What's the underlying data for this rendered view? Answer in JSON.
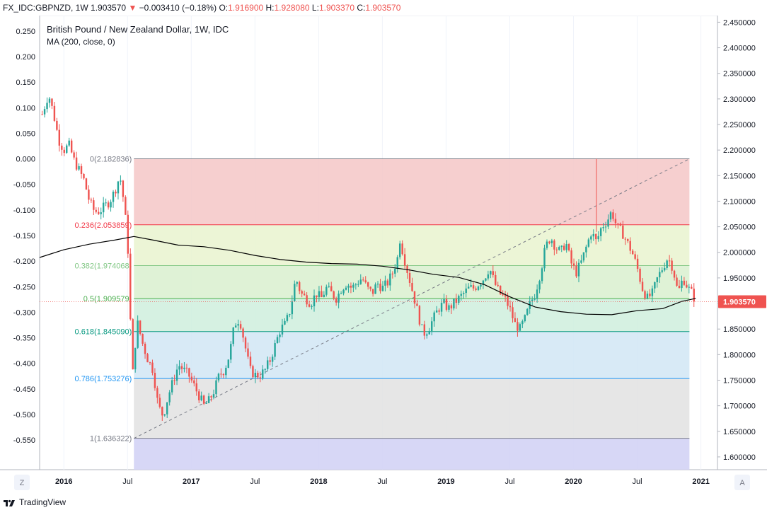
{
  "header": {
    "symbol": "FX_IDC:GBPNZD, 1W",
    "last": "1.903570",
    "arrow": "▼",
    "change": "−0.003410 (−0.18%)",
    "o_label": "O:",
    "o_value": "1.916900",
    "h_label": "H:",
    "h_value": "1.928080",
    "l_label": "L:",
    "l_value": "1.903370",
    "c_label": "C:",
    "c_value": "1.903570"
  },
  "legend": {
    "title": "British Pound / New Zealand Dollar, 1W, IDC",
    "indicator": "MA (200, close, 0)"
  },
  "price_badge": "1.903570",
  "footer": {
    "brand": "TradingView",
    "left_button": "Z",
    "right_button": "A"
  },
  "colors": {
    "up": "#26a69a",
    "down": "#ef5350",
    "ma": "#000000",
    "fib_0": "#787b86",
    "fib_236": "#f23645",
    "fib_382": "#81c784",
    "fib_5": "#4caf50",
    "fib_618": "#089981",
    "fib_786": "#2196f3",
    "fib_1": "#787b86",
    "zone_1": "#f4c7c7",
    "zone_2": "#e9f3cf",
    "zone_3": "#d9f0cf",
    "zone_4": "#cfeedd",
    "zone_5": "#d1e6f5",
    "zone_6": "#e2e2e2",
    "zone_7": "#d3d3f5",
    "badge": "#ef5350"
  },
  "chart_data": {
    "type": "candlestick",
    "title": "British Pound / New Zealand Dollar, 1W, IDC",
    "x_ticks": [
      "2016",
      "Jul",
      "2017",
      "Jul",
      "2018",
      "Jul",
      "2019",
      "Jul",
      "2020",
      "Jul",
      "2021"
    ],
    "x_tick_times": [
      2016.0,
      2016.5,
      2017.0,
      2017.5,
      2018.0,
      2018.5,
      2019.0,
      2019.5,
      2020.0,
      2020.5,
      2021.0
    ],
    "xlim": [
      2015.81,
      2021.13
    ],
    "y_right_ticks": [
      "2.450000",
      "2.400000",
      "2.350000",
      "2.300000",
      "2.250000",
      "2.200000",
      "2.150000",
      "2.100000",
      "2.050000",
      "2.000000",
      "1.950000",
      "1.900000",
      "1.850000",
      "1.800000",
      "1.750000",
      "1.700000",
      "1.650000",
      "1.600000"
    ],
    "y_right_values": [
      2.45,
      2.4,
      2.35,
      2.3,
      2.25,
      2.2,
      2.15,
      2.1,
      2.05,
      2.0,
      1.95,
      1.9,
      1.85,
      1.8,
      1.75,
      1.7,
      1.65,
      1.6
    ],
    "y_left_ticks": [
      "0.250",
      "0.200",
      "0.150",
      "0.100",
      "0.050",
      "0.000",
      "-0.050",
      "-0.100",
      "-0.150",
      "-0.200",
      "-0.250",
      "-0.300",
      "-0.350",
      "-0.400",
      "-0.450",
      "-0.500",
      "-0.550"
    ],
    "y_left_values": [
      0.25,
      0.2,
      0.15,
      0.1,
      0.05,
      0.0,
      -0.05,
      -0.1,
      -0.15,
      -0.2,
      -0.25,
      -0.3,
      -0.35,
      -0.4,
      -0.45,
      -0.5,
      -0.55
    ],
    "ylim": [
      1.575,
      2.463
    ],
    "last_price": 1.90357,
    "fib_levels": [
      {
        "label": "0(2.182836)",
        "ratio": 0,
        "price": 2.182836,
        "color": "#787b86"
      },
      {
        "label": "0.236(2.053859)",
        "ratio": 0.236,
        "price": 2.053859,
        "color": "#f23645"
      },
      {
        "label": "0.382(1.974068)",
        "ratio": 0.382,
        "price": 1.974068,
        "color": "#81c784"
      },
      {
        "label": "0.5(1.909579)",
        "ratio": 0.5,
        "price": 1.909579,
        "color": "#4caf50"
      },
      {
        "label": "0.618(1.845090)",
        "ratio": 0.618,
        "price": 1.84509,
        "color": "#089981"
      },
      {
        "label": "0.786(1.753276)",
        "ratio": 0.786,
        "price": 1.753276,
        "color": "#2196f3"
      },
      {
        "label": "1(1.636322)",
        "ratio": 1,
        "price": 1.636322,
        "color": "#787b86"
      }
    ],
    "fib_start_time": 2016.55,
    "fib_end_time": 2020.91,
    "price_path": [
      [
        2015.83,
        2.27
      ],
      [
        2015.88,
        2.31
      ],
      [
        2015.92,
        2.27
      ],
      [
        2015.96,
        2.22
      ],
      [
        2016.0,
        2.2
      ],
      [
        2016.04,
        2.21
      ],
      [
        2016.08,
        2.18
      ],
      [
        2016.12,
        2.16
      ],
      [
        2016.16,
        2.14
      ],
      [
        2016.2,
        2.1
      ],
      [
        2016.24,
        2.08
      ],
      [
        2016.28,
        2.08
      ],
      [
        2016.32,
        2.09
      ],
      [
        2016.36,
        2.1
      ],
      [
        2016.4,
        2.12
      ],
      [
        2016.44,
        2.15
      ],
      [
        2016.47,
        2.1
      ],
      [
        2016.49,
        2.05
      ],
      [
        2016.51,
        1.98
      ],
      [
        2016.52,
        1.88
      ],
      [
        2016.54,
        1.76
      ],
      [
        2016.56,
        1.82
      ],
      [
        2016.58,
        1.86
      ],
      [
        2016.62,
        1.82
      ],
      [
        2016.66,
        1.79
      ],
      [
        2016.7,
        1.77
      ],
      [
        2016.74,
        1.7
      ],
      [
        2016.78,
        1.68
      ],
      [
        2016.82,
        1.72
      ],
      [
        2016.86,
        1.75
      ],
      [
        2016.9,
        1.78
      ],
      [
        2016.94,
        1.77
      ],
      [
        2016.98,
        1.76
      ],
      [
        2017.02,
        1.74
      ],
      [
        2017.06,
        1.72
      ],
      [
        2017.1,
        1.7
      ],
      [
        2017.14,
        1.71
      ],
      [
        2017.18,
        1.73
      ],
      [
        2017.22,
        1.76
      ],
      [
        2017.26,
        1.77
      ],
      [
        2017.3,
        1.8
      ],
      [
        2017.34,
        1.86
      ],
      [
        2017.38,
        1.87
      ],
      [
        2017.42,
        1.82
      ],
      [
        2017.46,
        1.77
      ],
      [
        2017.5,
        1.76
      ],
      [
        2017.54,
        1.76
      ],
      [
        2017.58,
        1.77
      ],
      [
        2017.62,
        1.79
      ],
      [
        2017.66,
        1.82
      ],
      [
        2017.7,
        1.85
      ],
      [
        2017.74,
        1.86
      ],
      [
        2017.78,
        1.89
      ],
      [
        2017.82,
        1.95
      ],
      [
        2017.86,
        1.92
      ],
      [
        2017.9,
        1.91
      ],
      [
        2017.94,
        1.9
      ],
      [
        2017.98,
        1.92
      ],
      [
        2018.02,
        1.91
      ],
      [
        2018.06,
        1.93
      ],
      [
        2018.1,
        1.92
      ],
      [
        2018.14,
        1.91
      ],
      [
        2018.18,
        1.93
      ],
      [
        2018.22,
        1.94
      ],
      [
        2018.26,
        1.93
      ],
      [
        2018.3,
        1.94
      ],
      [
        2018.34,
        1.95
      ],
      [
        2018.38,
        1.93
      ],
      [
        2018.42,
        1.92
      ],
      [
        2018.46,
        1.94
      ],
      [
        2018.5,
        1.93
      ],
      [
        2018.54,
        1.94
      ],
      [
        2018.58,
        1.96
      ],
      [
        2018.62,
        1.99
      ],
      [
        2018.64,
        2.03
      ],
      [
        2018.66,
        2.0
      ],
      [
        2018.7,
        1.96
      ],
      [
        2018.74,
        1.92
      ],
      [
        2018.78,
        1.88
      ],
      [
        2018.82,
        1.84
      ],
      [
        2018.86,
        1.85
      ],
      [
        2018.9,
        1.87
      ],
      [
        2018.94,
        1.89
      ],
      [
        2018.98,
        1.9
      ],
      [
        2019.02,
        1.89
      ],
      [
        2019.06,
        1.9
      ],
      [
        2019.1,
        1.91
      ],
      [
        2019.14,
        1.92
      ],
      [
        2019.18,
        1.93
      ],
      [
        2019.22,
        1.93
      ],
      [
        2019.26,
        1.94
      ],
      [
        2019.3,
        1.95
      ],
      [
        2019.34,
        1.97
      ],
      [
        2019.38,
        1.94
      ],
      [
        2019.42,
        1.92
      ],
      [
        2019.46,
        1.91
      ],
      [
        2019.5,
        1.89
      ],
      [
        2019.54,
        1.86
      ],
      [
        2019.58,
        1.85
      ],
      [
        2019.62,
        1.87
      ],
      [
        2019.66,
        1.9
      ],
      [
        2019.7,
        1.92
      ],
      [
        2019.74,
        1.96
      ],
      [
        2019.78,
        2.01
      ],
      [
        2019.82,
        2.03
      ],
      [
        2019.86,
        2.01
      ],
      [
        2019.9,
        2.0
      ],
      [
        2019.94,
        2.02
      ],
      [
        2019.98,
        1.98
      ],
      [
        2020.02,
        1.96
      ],
      [
        2020.06,
        1.98
      ],
      [
        2020.1,
        2.01
      ],
      [
        2020.14,
        2.04
      ],
      [
        2020.18,
        2.02
      ],
      [
        2020.22,
        2.05
      ],
      [
        2020.26,
        2.06
      ],
      [
        2020.3,
        2.08
      ],
      [
        2020.34,
        2.05
      ],
      [
        2020.38,
        2.04
      ],
      [
        2020.42,
        2.02
      ],
      [
        2020.46,
        2.0
      ],
      [
        2020.5,
        1.97
      ],
      [
        2020.54,
        1.93
      ],
      [
        2020.58,
        1.91
      ],
      [
        2020.62,
        1.92
      ],
      [
        2020.66,
        1.95
      ],
      [
        2020.7,
        1.97
      ],
      [
        2020.74,
        1.99
      ],
      [
        2020.78,
        1.97
      ],
      [
        2020.82,
        1.92
      ],
      [
        2020.86,
        1.95
      ],
      [
        2020.9,
        1.93
      ],
      [
        2020.93,
        1.92
      ],
      [
        2020.96,
        1.90357
      ]
    ],
    "ma_points": [
      [
        2015.81,
        1.99
      ],
      [
        2016.0,
        2.005
      ],
      [
        2016.2,
        2.016
      ],
      [
        2016.4,
        2.024
      ],
      [
        2016.55,
        2.031
      ],
      [
        2016.7,
        2.024
      ],
      [
        2016.9,
        2.014
      ],
      [
        2017.1,
        2.011
      ],
      [
        2017.3,
        2.004
      ],
      [
        2017.5,
        1.994
      ],
      [
        2017.7,
        1.986
      ],
      [
        2017.9,
        1.981
      ],
      [
        2018.1,
        1.978
      ],
      [
        2018.3,
        1.977
      ],
      [
        2018.5,
        1.973
      ],
      [
        2018.7,
        1.966
      ],
      [
        2018.9,
        1.957
      ],
      [
        2019.1,
        1.951
      ],
      [
        2019.3,
        1.937
      ],
      [
        2019.5,
        1.913
      ],
      [
        2019.7,
        1.893
      ],
      [
        2019.9,
        1.884
      ],
      [
        2020.1,
        1.879
      ],
      [
        2020.3,
        1.878
      ],
      [
        2020.5,
        1.886
      ],
      [
        2020.7,
        1.89
      ],
      [
        2020.85,
        1.904
      ],
      [
        2020.96,
        1.91
      ]
    ],
    "spike": {
      "time": 2020.18,
      "high": 2.182836,
      "low": 2.04
    },
    "dashed_trend": {
      "from": [
        2016.55,
        1.636322
      ],
      "to": [
        2020.91,
        2.182836
      ]
    }
  }
}
